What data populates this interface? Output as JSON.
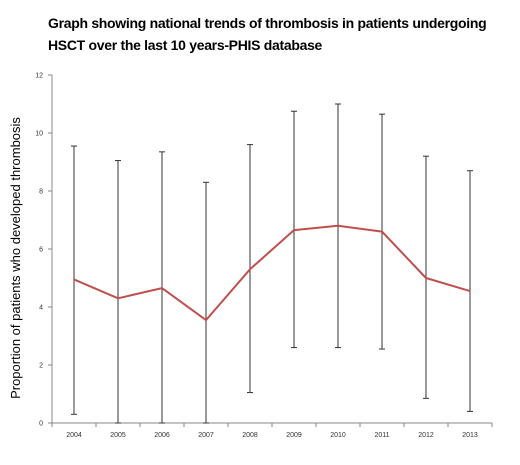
{
  "chart_data": {
    "type": "line",
    "title": "Graph showing national trends of thrombosis in patients undergoing HSCT over the last 10 years-PHIS database",
    "xlabel": "",
    "ylabel": "Proportion of patients who developed thrombosis",
    "categories": [
      "2004",
      "2005",
      "2006",
      "2007",
      "2008",
      "2009",
      "2010",
      "2011",
      "2012",
      "2013"
    ],
    "series": [
      {
        "values": [
          4.95,
          4.3,
          4.65,
          3.55,
          5.3,
          6.65,
          6.8,
          6.6,
          5.0,
          4.55
        ],
        "error_low": [
          0.3,
          0.0,
          0.0,
          0.0,
          1.05,
          2.6,
          2.6,
          2.55,
          0.85,
          0.4
        ],
        "error_high": [
          9.55,
          9.05,
          9.35,
          8.3,
          9.6,
          10.75,
          11.0,
          10.65,
          9.2,
          8.7
        ],
        "color": "#c0504d"
      }
    ],
    "ylim": [
      0,
      12
    ],
    "yticks": [
      "0",
      "2",
      "4",
      "6",
      "8",
      "10",
      "12"
    ],
    "grid": false,
    "legend": "none"
  }
}
